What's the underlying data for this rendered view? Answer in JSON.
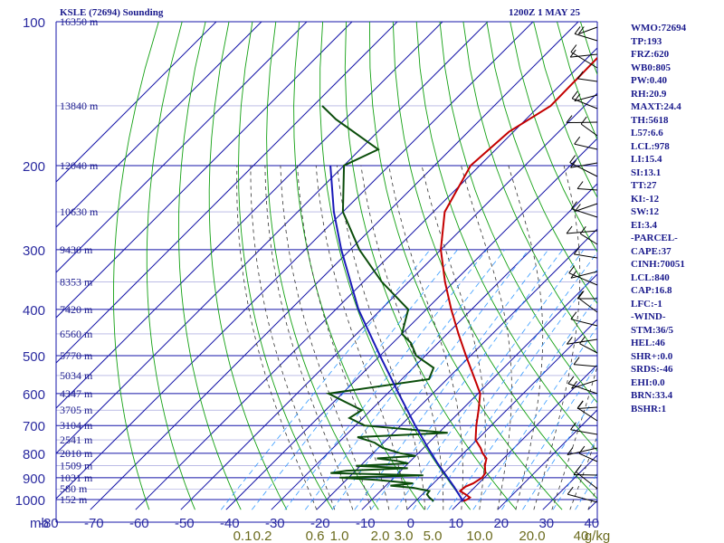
{
  "header": {
    "station": "KSLE (72694) Sounding",
    "time": "1200Z  1 MAY 25"
  },
  "indices": [
    "WMO:72694",
    "TP:193",
    "FRZ:620",
    "WB0:805",
    "PW:0.40",
    "RH:20.9",
    "MAXT:24.4",
    "TH:5618",
    "L57:6.6",
    "LCL:978",
    "LI:15.4",
    "SI:13.1",
    "TT:27",
    "KI:-12",
    "SW:12",
    "EI:3.4",
    "-PARCEL-",
    "CAPE:37",
    "CINH:70051",
    "LCL:840",
    "CAP:16.8",
    "LFC:-1",
    "-WIND-",
    "STM:36/5",
    "HEL:46",
    "SHR+:0.0",
    "SRDS:-46",
    "EHI:0.0",
    "BRN:33.4",
    "BSHR:1"
  ],
  "colors": {
    "isotherm": "#1515a8",
    "isobar": "#1515a8",
    "dry_adiabat": "#12a012",
    "moist_adiabat": "#333333",
    "mixing_ratio": "#3399ff",
    "temperature": "#c40000",
    "dewpoint": "#0b4d0b",
    "parcel": "#1a1ab8",
    "text": "#1a1a8c",
    "mixing_label": "#6b6b1e"
  },
  "chart_data": {
    "type": "line",
    "diagram": "skew-T log-P",
    "pressure_axis": {
      "ticks": [
        100,
        200,
        300,
        400,
        500,
        600,
        700,
        800,
        900,
        1000
      ],
      "log_scale": true,
      "range_mb": [
        100,
        1050
      ]
    },
    "temperature_axis": {
      "unit_label": "mb",
      "ticks": [
        -80,
        -70,
        -60,
        -50,
        -40,
        -30,
        -20,
        -10,
        0,
        10,
        20,
        30,
        40
      ],
      "tick_labels": [
        "-80",
        "-70",
        "-60",
        "-50",
        "-40",
        "-30",
        "-20",
        "-10",
        "0",
        "10",
        "20",
        "30",
        "40"
      ]
    },
    "mixing_ratio_labels": [
      "0.1",
      "0.2",
      "0.6",
      "1.0",
      "2.0",
      "3.0",
      "5.0",
      "10.0",
      "20.0",
      "40",
      "g/kg"
    ],
    "height_labels": [
      {
        "p": 100,
        "label": "16350 m"
      },
      {
        "p": 150,
        "label": "13840 m"
      },
      {
        "p": 200,
        "label": "12040 m"
      },
      {
        "p": 250,
        "label": "10630 m"
      },
      {
        "p": 300,
        "label": "9430 m"
      },
      {
        "p": 350,
        "label": "8353 m"
      },
      {
        "p": 400,
        "label": "7420 m"
      },
      {
        "p": 450,
        "label": "6560 m"
      },
      {
        "p": 500,
        "label": "5770 m"
      },
      {
        "p": 550,
        "label": "5034 m"
      },
      {
        "p": 600,
        "label": "4347 m"
      },
      {
        "p": 650,
        "label": "3705 m"
      },
      {
        "p": 700,
        "label": "3104 m"
      },
      {
        "p": 750,
        "label": "2541 m"
      },
      {
        "p": 800,
        "label": "2010 m"
      },
      {
        "p": 850,
        "label": "1509 m"
      },
      {
        "p": 900,
        "label": "1031 m"
      },
      {
        "p": 950,
        "label": "580 m"
      },
      {
        "p": 1000,
        "label": "152 m"
      }
    ],
    "series": [
      {
        "key": "temperature",
        "points": [
          [
            1008,
            10.5
          ],
          [
            1000,
            11
          ],
          [
            990,
            11.2
          ],
          [
            975,
            9.5
          ],
          [
            960,
            7.6
          ],
          [
            940,
            7.8
          ],
          [
            925,
            8.8
          ],
          [
            900,
            9.5
          ],
          [
            880,
            9.2
          ],
          [
            850,
            7.5
          ],
          [
            820,
            6.2
          ],
          [
            800,
            4.2
          ],
          [
            780,
            2.6
          ],
          [
            750,
            -0.3
          ],
          [
            700,
            -3.3
          ],
          [
            650,
            -6.2
          ],
          [
            600,
            -9.5
          ],
          [
            550,
            -15
          ],
          [
            500,
            -21
          ],
          [
            450,
            -27.5
          ],
          [
            400,
            -34.5
          ],
          [
            350,
            -42
          ],
          [
            300,
            -50
          ],
          [
            250,
            -57.5
          ],
          [
            200,
            -62
          ],
          [
            170,
            -61
          ],
          [
            150,
            -57.5
          ],
          [
            100,
            -58
          ]
        ]
      },
      {
        "key": "dewpoint",
        "points": [
          [
            1008,
            4
          ],
          [
            990,
            2.2
          ],
          [
            975,
            1
          ],
          [
            960,
            0.8
          ],
          [
            945,
            -3.5
          ],
          [
            935,
            -9
          ],
          [
            925,
            -4.5
          ],
          [
            910,
            -13
          ],
          [
            900,
            -22
          ],
          [
            890,
            -4
          ],
          [
            880,
            -25
          ],
          [
            870,
            -22
          ],
          [
            860,
            -9
          ],
          [
            850,
            -21
          ],
          [
            840,
            -10
          ],
          [
            830,
            -13
          ],
          [
            820,
            -18
          ],
          [
            810,
            -10
          ],
          [
            800,
            -14
          ],
          [
            780,
            -19
          ],
          [
            760,
            -22
          ],
          [
            740,
            -27
          ],
          [
            725,
            -8
          ],
          [
            700,
            -28
          ],
          [
            675,
            -33
          ],
          [
            650,
            -32
          ],
          [
            600,
            -43
          ],
          [
            560,
            -24
          ],
          [
            530,
            -25.5
          ],
          [
            500,
            -32
          ],
          [
            470,
            -36
          ],
          [
            450,
            -40
          ],
          [
            400,
            -44
          ],
          [
            350,
            -56
          ],
          [
            300,
            -68
          ],
          [
            250,
            -80
          ],
          [
            200,
            -90
          ],
          [
            185,
            -86
          ],
          [
            160,
            -102
          ],
          [
            150,
            -108
          ]
        ]
      },
      {
        "key": "parcel",
        "points": [
          [
            1008,
            10.5
          ],
          [
            940,
            5.3
          ],
          [
            840,
            -3.5
          ],
          [
            780,
            -9
          ],
          [
            700,
            -16.8
          ],
          [
            600,
            -27.5
          ],
          [
            500,
            -40
          ],
          [
            400,
            -55
          ],
          [
            300,
            -72
          ],
          [
            250,
            -82
          ],
          [
            200,
            -93
          ]
        ]
      }
    ]
  }
}
